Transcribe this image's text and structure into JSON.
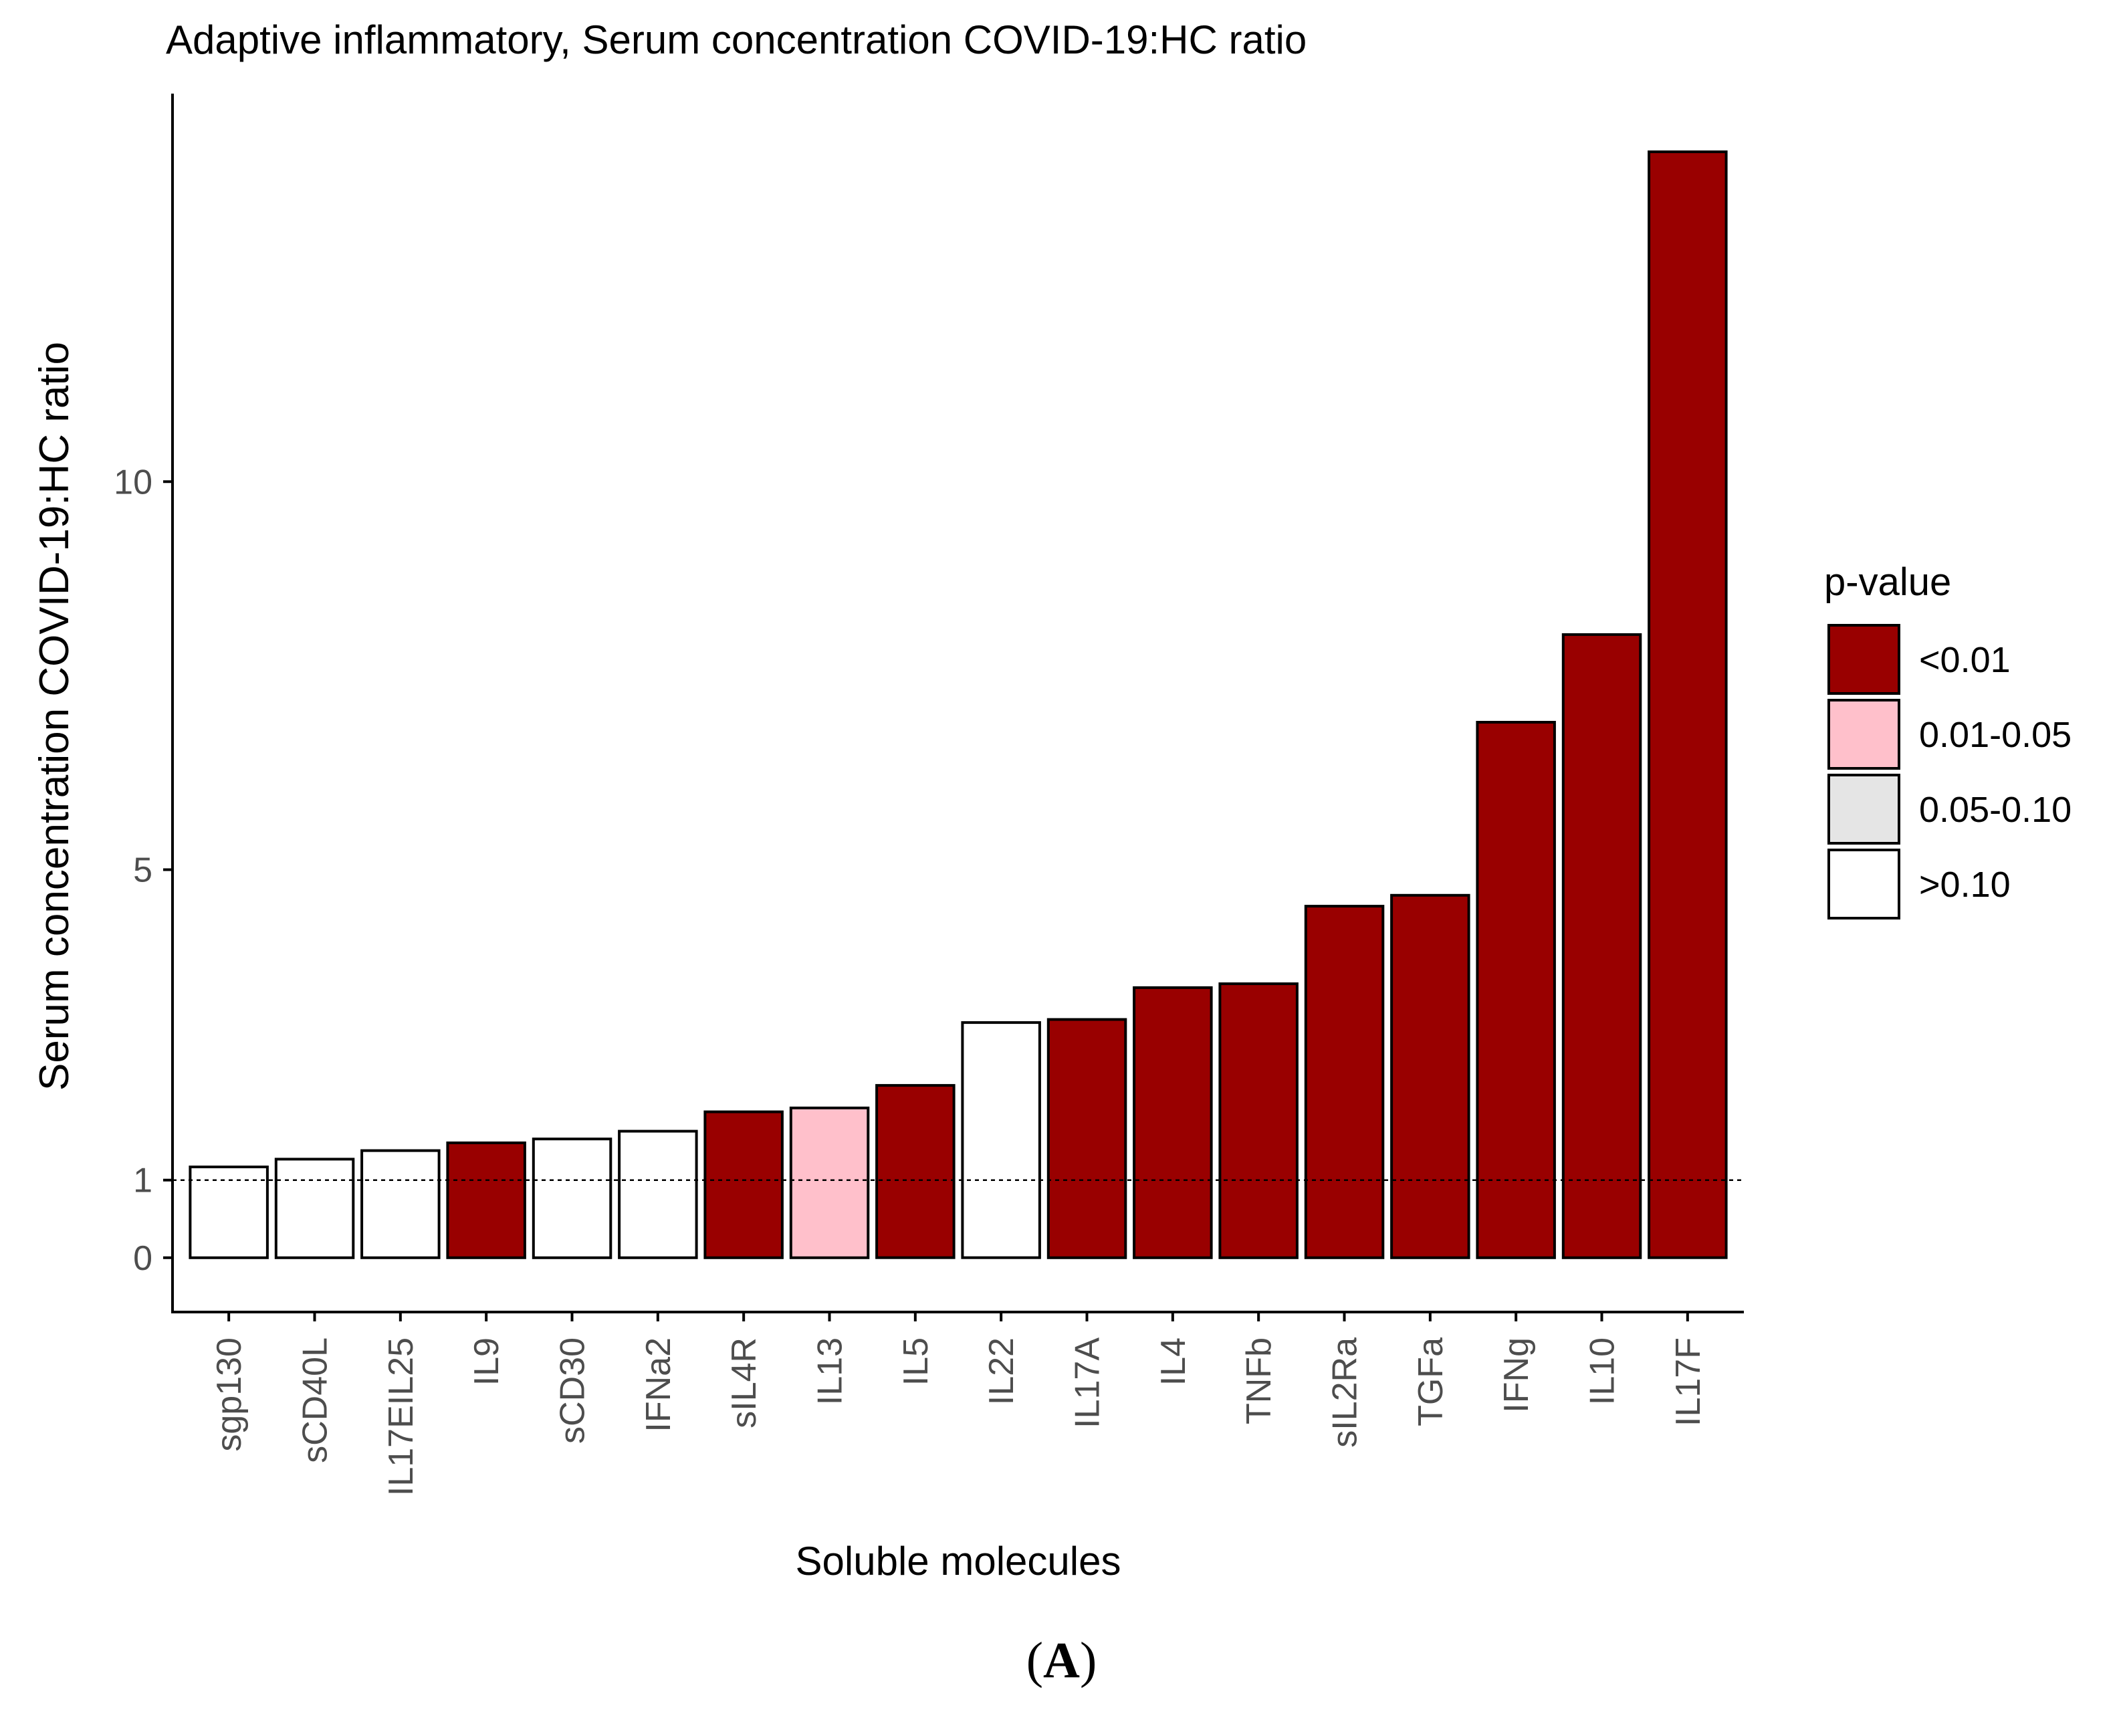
{
  "colors": {
    "sig_lt_001": "#990000",
    "sig_001_005": "#FFC0CB",
    "sig_005_010": "#E5E5E5",
    "sig_gt_010": "#FFFFFF",
    "axis": "#000000",
    "tick_text": "#4D4D4D"
  },
  "panel": {
    "open": "(",
    "letter": "A",
    "close": ")"
  },
  "chart_data": {
    "type": "bar",
    "title": "Adaptive inflammatory, Serum concentration COVID-19:HC ratio",
    "xlabel": "Soluble molecules",
    "ylabel": "Serum concentration COVID-19:HC ratio",
    "ylim": [
      -0.7,
      15
    ],
    "yticks": [
      0,
      1,
      5,
      10
    ],
    "reference_line": 1,
    "categories": [
      "sgp130",
      "sCD40L",
      "IL17EIL25",
      "IL9",
      "sCD30",
      "IFNa2",
      "sIL4R",
      "IL13",
      "IL5",
      "IL22",
      "IL17A",
      "IL4",
      "TNFb",
      "sIL2Ra",
      "TGFa",
      "IFNg",
      "IL10",
      "IL17F"
    ],
    "values": [
      1.17,
      1.27,
      1.38,
      1.48,
      1.53,
      1.63,
      1.88,
      1.93,
      2.22,
      3.03,
      3.07,
      3.48,
      3.53,
      4.53,
      4.67,
      6.9,
      8.03,
      14.25
    ],
    "significance": [
      "gt_010",
      "gt_010",
      "gt_010",
      "lt_001",
      "gt_010",
      "gt_010",
      "lt_001",
      "001_005",
      "lt_001",
      "gt_010",
      "lt_001",
      "lt_001",
      "lt_001",
      "lt_001",
      "lt_001",
      "lt_001",
      "lt_001",
      "lt_001"
    ],
    "legend": {
      "title": "p-value",
      "position": "right",
      "entries": [
        {
          "key": "lt_001",
          "label": "<0.01",
          "color": "#990000"
        },
        {
          "key": "001_005",
          "label": "0.01-0.05",
          "color": "#FFC0CB"
        },
        {
          "key": "005_010",
          "label": "0.05-0.10",
          "color": "#E5E5E5"
        },
        {
          "key": "gt_010",
          "label": ">0.10",
          "color": "#FFFFFF"
        }
      ]
    },
    "grid": false
  }
}
